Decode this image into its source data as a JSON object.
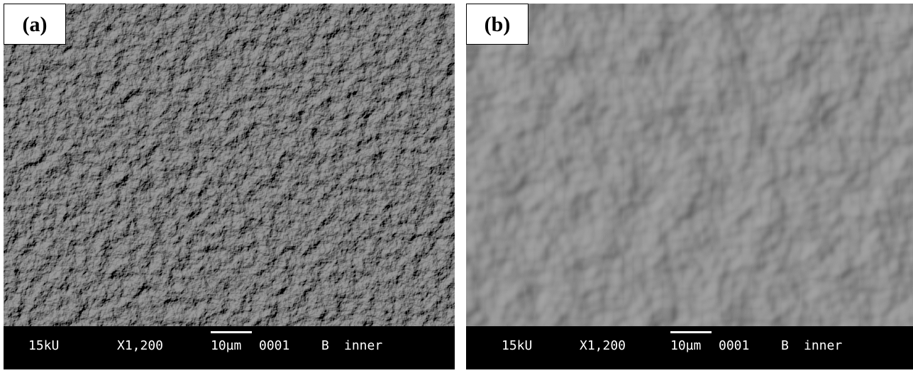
{
  "panels": [
    {
      "label": "(a)",
      "voltage": "15kU",
      "magnification": "X1,200",
      "scale_bar": "10µm",
      "image_number": "0001",
      "detector": "B",
      "mode": "inner"
    },
    {
      "label": "(b)",
      "voltage": "15kU",
      "magnification": "X1,200",
      "scale_bar": "10µm",
      "image_number": "0001",
      "detector": "B",
      "mode": "inner"
    }
  ]
}
